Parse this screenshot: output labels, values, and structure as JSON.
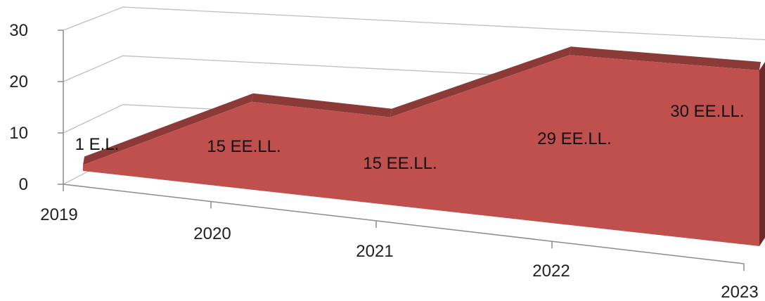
{
  "chart_data": {
    "type": "area",
    "categories": [
      "2019",
      "2020",
      "2021",
      "2022",
      "2023"
    ],
    "values": [
      1,
      15,
      15,
      29,
      30
    ],
    "data_labels": [
      "1 E.L.",
      "15 EE.LL.",
      "15 EE.LL.",
      "29 EE.LL.",
      "30 EE.LL."
    ],
    "y_ticks": [
      "0",
      "10",
      "20",
      "30"
    ],
    "ylim": [
      0,
      30
    ],
    "colors": {
      "front": "#c0504d",
      "top": "#8c3a38",
      "side": "#6e2a28",
      "grid": "#bfbfbf"
    },
    "grid": true,
    "legend": "none",
    "style": "3d"
  }
}
